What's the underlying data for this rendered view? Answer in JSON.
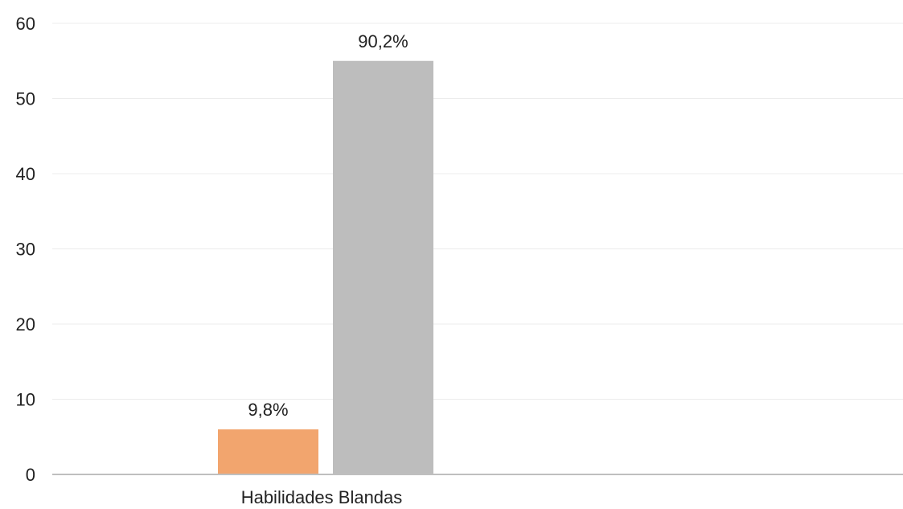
{
  "chart_data": {
    "type": "bar",
    "categories": [
      "Habilidades Blandas"
    ],
    "series": [
      {
        "values": [
          6
        ],
        "data_label": "9,8%",
        "color": "#f2a56e"
      },
      {
        "values": [
          55
        ],
        "data_label": "90,2%",
        "color": "#bdbdbd"
      }
    ],
    "y_ticks": [
      "0",
      "10",
      "20",
      "30",
      "40",
      "50",
      "60"
    ],
    "ylim": [
      0,
      60
    ],
    "grid": true,
    "legend": "none",
    "title": "",
    "xlabel": "",
    "ylabel": ""
  }
}
